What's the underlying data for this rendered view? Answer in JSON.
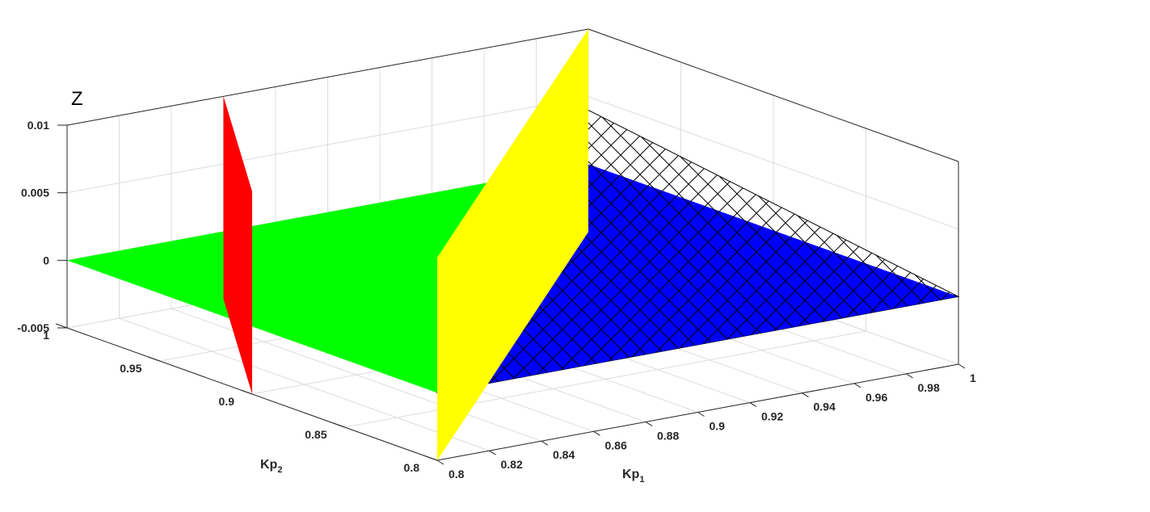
{
  "colors": {
    "background": "#ffffff",
    "axis": "#262626",
    "grid": "#dcdcdc",
    "green_plane": "#00ff00",
    "blue_plane": "#0000ff",
    "yellow_plane": "#ffff00",
    "red_plane": "#ff0000",
    "hatch": "#000000"
  },
  "chart_data": {
    "type": "surface",
    "title": "",
    "xlabel": "Kp",
    "xlabel_subscript": "1",
    "ylabel": "Kp",
    "ylabel_subscript": "2",
    "zlabel": "Z",
    "xlim": [
      0.8,
      1.0
    ],
    "ylim": [
      0.8,
      1.0
    ],
    "zlim": [
      -0.005,
      0.01
    ],
    "grid": true,
    "xticks": [
      "0.8",
      "0.82",
      "0.84",
      "0.86",
      "0.88",
      "0.9",
      "0.92",
      "0.94",
      "0.96",
      "0.98",
      "1"
    ],
    "yticks": [
      "0.8",
      "0.85",
      "0.9",
      "0.95",
      "1"
    ],
    "zticks": [
      "-0.005",
      "0",
      "0.005",
      "0.01"
    ],
    "surfaces": [
      {
        "color": "green",
        "description": "plane z = 0 over the region above the diagonal",
        "points": [
          [
            0.8,
            1.0,
            0
          ],
          [
            0.8,
            0.8,
            0
          ],
          [
            1.0,
            1.0,
            0
          ]
        ]
      },
      {
        "color": "blue",
        "description": "tilted plane below the diagonal",
        "points": [
          [
            0.8,
            0.8,
            0
          ],
          [
            1.0,
            0.8,
            0
          ],
          [
            1.0,
            1.0,
            0
          ]
        ]
      },
      {
        "color": "yellow",
        "description": "vertical plane at Kp1 = 0.8 + (Kp2 - 0.8) line",
        "points": [
          [
            0.8,
            0.8,
            -0.005
          ],
          [
            0.8,
            0.8,
            0.01
          ],
          [
            1.0,
            1.0,
            0.01
          ],
          [
            1.0,
            1.0,
            -0.005
          ]
        ]
      },
      {
        "color": "red",
        "description": "vertical plane through Kp2 = 0.9 region",
        "points": [
          [
            0.8,
            0.9,
            -0.005
          ],
          [
            0.8,
            0.9,
            0.01
          ],
          [
            0.86,
            1.0,
            0.01
          ],
          [
            0.86,
            1.0,
            -0.005
          ]
        ]
      },
      {
        "color": "hatched",
        "description": "cross-hatched region z < 0",
        "points": [
          [
            0.8,
            0.8,
            0
          ],
          [
            1.0,
            0.8,
            0
          ],
          [
            1.0,
            1.0,
            0.004
          ]
        ]
      }
    ]
  }
}
